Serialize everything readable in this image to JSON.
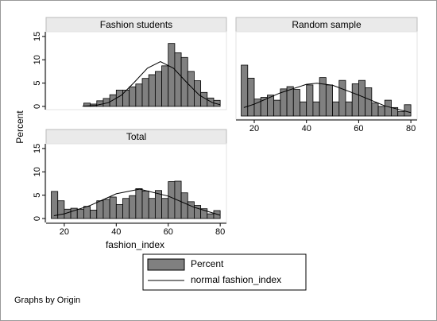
{
  "figure": {
    "ylabel": "Percent",
    "xlabel": "fashion_index",
    "legend": [
      {
        "name": "Percent",
        "color": "#808080"
      },
      {
        "name": "normal fashion_index",
        "color": "#000000"
      }
    ],
    "note": "Graphs by Origin"
  },
  "chart_data": [
    {
      "type": "histogram",
      "title": "Fashion students",
      "bins": [
        15,
        17.5,
        20,
        22.5,
        25,
        27.5,
        30,
        32.5,
        35,
        37.5,
        40,
        42.5,
        45,
        47.5,
        50,
        52.5,
        55,
        57.5,
        60,
        62.5,
        65,
        67.5,
        70,
        72.5,
        75,
        77.5,
        80
      ],
      "values": [
        0,
        0,
        0,
        0,
        0,
        0.7,
        0.5,
        1.2,
        1.7,
        2.5,
        3.5,
        3.5,
        4.2,
        4.8,
        6.0,
        6.8,
        7.5,
        8.7,
        13.5,
        11.5,
        10.5,
        7.5,
        5.5,
        3.0,
        1.8,
        1.3
      ],
      "color": "#808080",
      "curve": {
        "x": [
          27,
          32,
          37,
          42,
          47,
          52,
          57,
          62,
          67,
          72,
          77,
          80
        ],
        "values": [
          0.04,
          0.2,
          0.8,
          2.4,
          5.2,
          8.2,
          9.6,
          8.2,
          5.2,
          2.4,
          0.8,
          0.36
        ],
        "color": "#000000"
      },
      "xlim": [
        13,
        82.4
      ],
      "ylim": [
        -0.7,
        16
      ],
      "yticks": [
        0,
        5,
        10,
        15
      ]
    },
    {
      "type": "histogram",
      "title": "Random sample",
      "bins": [
        15,
        17.5,
        20,
        22.5,
        25,
        27.5,
        30,
        32.5,
        35,
        37.5,
        40,
        42.5,
        45,
        47.5,
        50,
        52.5,
        55,
        57.5,
        60,
        62.5,
        65,
        67.5,
        70,
        72.5,
        75,
        77.5,
        80
      ],
      "values": [
        9,
        6.7,
        3.0,
        3.3,
        3.7,
        2.8,
        4.8,
        5.2,
        4.7,
        2.5,
        5.5,
        2.5,
        6.8,
        5.5,
        2.5,
        6.3,
        2.5,
        5.7,
        6.3,
        5.0,
        2.3,
        1.7,
        2.8,
        1.5,
        0.8,
        2.0
      ],
      "color": "#808080",
      "curve": {
        "x": [
          16,
          20,
          30,
          40,
          44,
          50,
          60,
          70,
          80
        ],
        "values": [
          1.5,
          2.1,
          4.1,
          5.6,
          5.8,
          5.45,
          3.7,
          1.8,
          0.6
        ],
        "color": "#000000"
      },
      "xlim": [
        13,
        82.4
      ],
      "ylim": [
        -0.56,
        14.9
      ],
      "xticks": [
        20,
        40,
        60,
        80
      ]
    },
    {
      "type": "histogram",
      "title": "Total",
      "bins": [
        15,
        17.5,
        20,
        22.5,
        25,
        27.5,
        30,
        32.5,
        35,
        37.5,
        40,
        42.5,
        45,
        47.5,
        50,
        52.5,
        55,
        57.5,
        60,
        62.5,
        65,
        67.5,
        70,
        72.5,
        75,
        77.5,
        80
      ],
      "values": [
        5.8,
        3.8,
        2.0,
        2.2,
        2.0,
        2.6,
        1.8,
        3.8,
        4.1,
        4.6,
        3.0,
        4.3,
        4.9,
        6.4,
        5.9,
        4.3,
        6.0,
        4.3,
        7.9,
        8.0,
        5.5,
        3.6,
        2.8,
        2.1,
        1.0,
        1.7
      ],
      "color": "#808080",
      "curve": {
        "x": [
          16,
          20,
          30,
          40,
          49,
          60,
          70,
          80
        ],
        "values": [
          0.6,
          1.0,
          2.8,
          5.3,
          6.3,
          4.8,
          2.4,
          0.7
        ],
        "color": "#000000"
      },
      "xlim": [
        13,
        82.4
      ],
      "ylim": [
        -0.85,
        16
      ],
      "xticks": [
        20,
        40,
        60,
        80
      ],
      "yticks": [
        0,
        5,
        10,
        15
      ]
    }
  ]
}
